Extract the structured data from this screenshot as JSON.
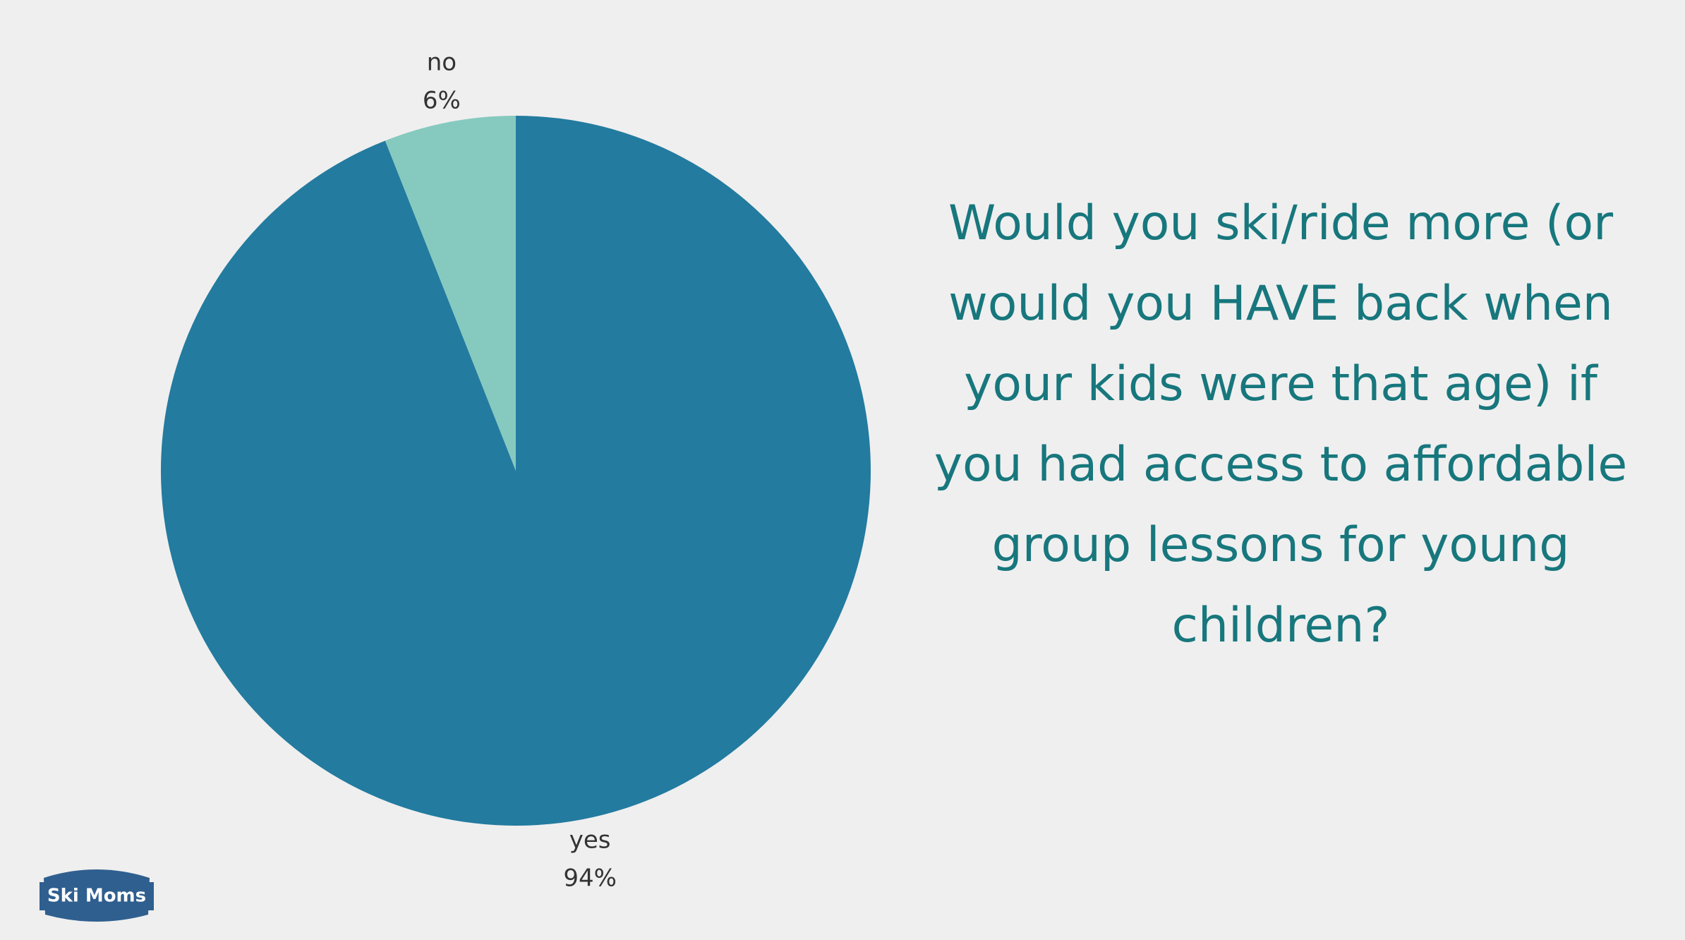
{
  "chart_data": {
    "type": "pie",
    "title": "Would you ski/ride more (or would you HAVE back when your kids were that age) if you had access to affordable group lessons for young children?",
    "categories": [
      "yes",
      "no"
    ],
    "values": [
      94,
      6
    ],
    "value_labels": [
      "94%",
      "6%"
    ],
    "colors": [
      "#237b9f",
      "#86c9bf"
    ]
  },
  "logo": "Ski Moms"
}
